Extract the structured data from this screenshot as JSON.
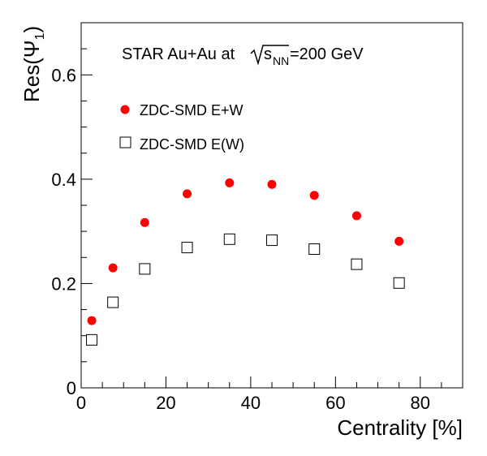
{
  "chart_data": {
    "type": "scatter",
    "title_parts": {
      "prefix": "STAR Au+Au at ",
      "sqrt_symbol": "√",
      "s": "s",
      "subscript": "NN",
      "suffix": "=200 GeV"
    },
    "xlabel": "Centrality [%]",
    "ylabel_parts": {
      "prefix": "Res(",
      "psi": "Ψ",
      "subscript": "1",
      "suffix": ")"
    },
    "xlim": [
      0,
      90
    ],
    "ylim": [
      0,
      0.7
    ],
    "x_ticks": [
      "0",
      "20",
      "40",
      "60",
      "80"
    ],
    "x_tick_values": [
      0,
      20,
      40,
      60,
      80
    ],
    "y_ticks": [
      "0",
      "0.2",
      "0.4",
      "0.6"
    ],
    "y_tick_values": [
      0,
      0.2,
      0.4,
      0.6
    ],
    "legend_position": "upper-left",
    "series": [
      {
        "name": "ZDC-SMD E+W",
        "marker": "filled-circle",
        "color": "#ff0000",
        "x": [
          2.5,
          7.5,
          15,
          25,
          35,
          45,
          55,
          65,
          75
        ],
        "y": [
          0.129,
          0.23,
          0.317,
          0.372,
          0.393,
          0.39,
          0.369,
          0.33,
          0.281
        ]
      },
      {
        "name": "ZDC-SMD E(W)",
        "marker": "open-square",
        "color": "#000000",
        "x": [
          2.5,
          7.5,
          15,
          25,
          35,
          45,
          55,
          65,
          75
        ],
        "y": [
          0.092,
          0.164,
          0.228,
          0.269,
          0.285,
          0.283,
          0.266,
          0.237,
          0.201
        ]
      }
    ]
  }
}
